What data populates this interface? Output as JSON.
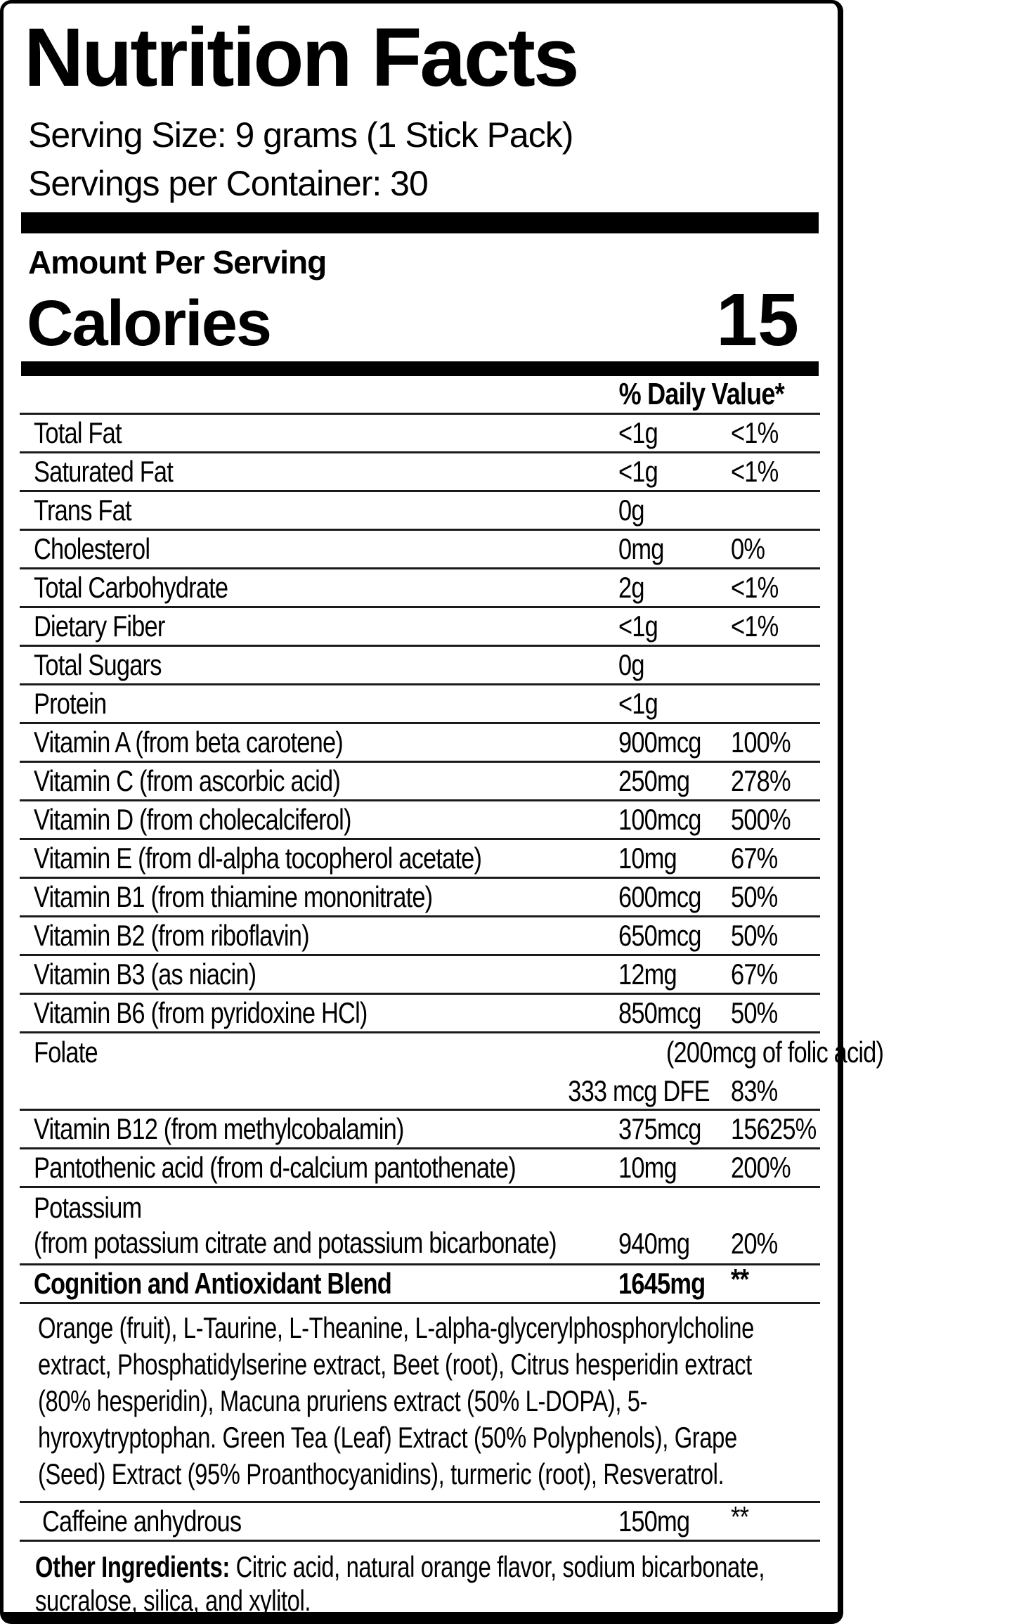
{
  "label": {
    "title": "Nutrition Facts",
    "serving_size": "Serving Size: 9 grams (1 Stick Pack)",
    "servings_per_container": "Servings per Container: 30",
    "amount_per_serving": "Amount Per Serving",
    "calories_label": "Calories",
    "calories_value": "15",
    "daily_value_header": "% Daily Value*",
    "rows": [
      {
        "name": "Total Fat",
        "amount": "<1g",
        "percent": "<1%"
      },
      {
        "name": "Saturated Fat",
        "amount": "<1g",
        "percent": "<1%"
      },
      {
        "name": "Trans Fat",
        "amount": "0g",
        "percent": ""
      },
      {
        "name": "Cholesterol",
        "amount": "0mg",
        "percent": "0%"
      },
      {
        "name": "Total Carbohydrate",
        "amount": "2g",
        "percent": "<1%"
      },
      {
        "name": "Dietary Fiber",
        "amount": "<1g",
        "percent": "<1%"
      },
      {
        "name": "Total Sugars",
        "amount": "0g",
        "percent": ""
      },
      {
        "name": "Protein",
        "amount": "<1g",
        "percent": ""
      },
      {
        "name": "Vitamin A (from beta carotene)",
        "amount": "900mcg",
        "percent": "100%"
      },
      {
        "name": "Vitamin C (from ascorbic acid)",
        "amount": "250mg",
        "percent": "278%"
      },
      {
        "name": "Vitamin D (from cholecalciferol)",
        "amount": "100mcg",
        "percent": "500%"
      },
      {
        "name": "Vitamin E (from dl-alpha tocopherol acetate)",
        "amount": "10mg",
        "percent": "67%"
      },
      {
        "name": "Vitamin B1 (from thiamine mononitrate)",
        "amount": "600mcg",
        "percent": "50%"
      },
      {
        "name": "Vitamin B2 (from riboflavin)",
        "amount": "650mcg",
        "percent": "50%"
      },
      {
        "name": "Vitamin B3 (as niacin)",
        "amount": "12mg",
        "percent": "67%"
      },
      {
        "name": "Vitamin B6 (from pyridoxine HCl)",
        "amount": "850mcg",
        "percent": "50%"
      },
      {
        "type": "folate",
        "name": "Folate",
        "note": "(200mcg of folic acid)",
        "amount": "333 mcg DFE",
        "percent": "83%"
      },
      {
        "name": "Vitamin B12 (from methylcobalamin)",
        "amount": "375mcg",
        "percent": "15625%"
      },
      {
        "name": "Pantothenic acid (from d-calcium pantothenate)",
        "amount": "10mg",
        "percent": "200%"
      },
      {
        "type": "twoline",
        "name": "Potassium",
        "name2": "(from potassium citrate and potassium bicarbonate)",
        "amount": "940mg",
        "percent": "20%"
      },
      {
        "type": "bold",
        "name": "Cognition and Antioxidant Blend",
        "amount": "1645mg",
        "percent": "**"
      }
    ],
    "blend_description": "Orange (fruit), L-Taurine, L-Theanine, L-alpha-glycerylphosphorylcholine extract, Phosphatidylserine extract, Beet (root), Citrus hesperidin extract (80% hesperidin), Macuna pruriens extract (50% L-DOPA), 5-hyroxytryptophan. Green Tea (Leaf) Extract (50% Polyphenols), Grape (Seed) Extract (95% Proanthocyanidins), turmeric (root), Resveratrol.",
    "caffeine": {
      "name": "Caffeine anhydrous",
      "amount": "150mg",
      "percent": "**"
    },
    "other_ingredients": {
      "label": "Other Ingredients:",
      "text": " Citric acid, natural orange flavor, sodium bicarbonate, sucralose, silica, and xylitol."
    },
    "colors": {
      "background": "#ffffff",
      "text": "#000000",
      "divider": "#1b1b1b"
    }
  }
}
